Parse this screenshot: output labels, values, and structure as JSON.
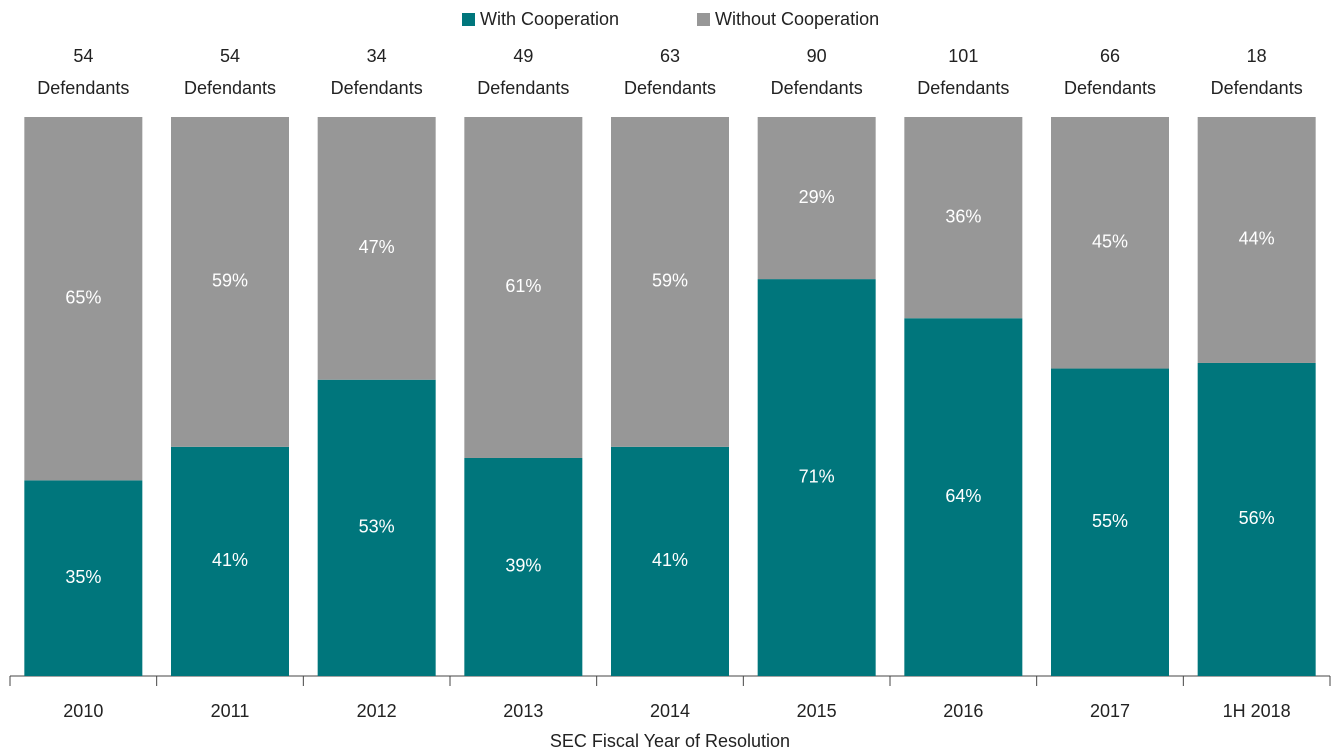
{
  "chart_data": {
    "type": "stacked_bar",
    "categories": [
      "2010",
      "2011",
      "2012",
      "2013",
      "2014",
      "2015",
      "2016",
      "2017",
      "1H 2018"
    ],
    "series": [
      {
        "name": "With Cooperation",
        "color": "#00767c",
        "values": [
          35,
          41,
          53,
          39,
          41,
          71,
          64,
          55,
          56
        ],
        "value_labels": [
          "35%",
          "41%",
          "53%",
          "39%",
          "41%",
          "71%",
          "64%",
          "55%",
          "56%"
        ]
      },
      {
        "name": "Without Cooperation",
        "color": "#979797",
        "values": [
          65,
          59,
          47,
          61,
          59,
          29,
          36,
          45,
          44
        ],
        "value_labels": [
          "65%",
          "59%",
          "47%",
          "61%",
          "59%",
          "29%",
          "36%",
          "45%",
          "44%"
        ]
      }
    ],
    "defendants": [
      54,
      54,
      34,
      49,
      63,
      90,
      101,
      66,
      18
    ],
    "defendants_label": "Defendants",
    "xlabel": "SEC Fiscal Year of Resolution",
    "ylim": [
      0,
      100
    ],
    "legend": "top"
  }
}
